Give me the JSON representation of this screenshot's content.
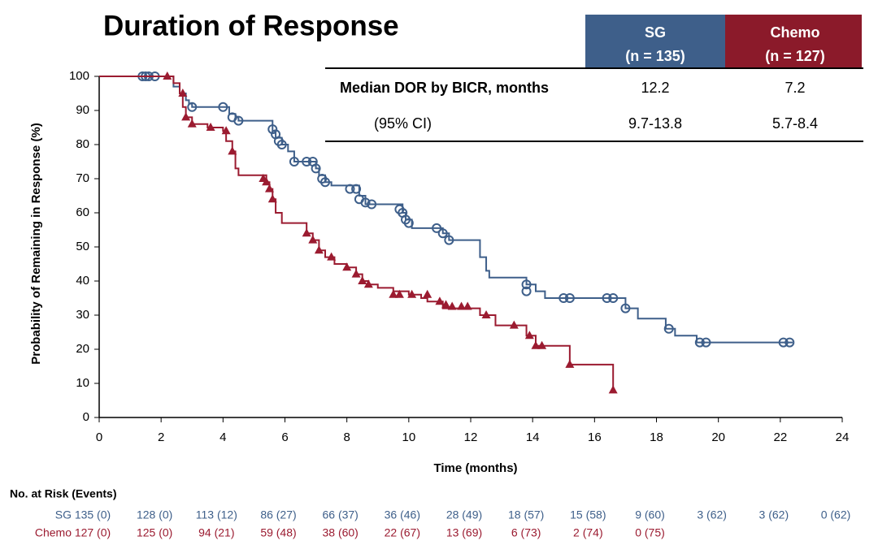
{
  "chart_data": {
    "type": "step",
    "title": "Duration of Response",
    "x_label": "Time (months)",
    "y_label": "Probability of Remaining in Response (%)",
    "xlim": [
      0,
      24
    ],
    "xticks": [
      0,
      2,
      4,
      6,
      8,
      10,
      12,
      14,
      16,
      18,
      20,
      22,
      24
    ],
    "ylim": [
      0,
      100
    ],
    "yticks": [
      0,
      10,
      20,
      30,
      40,
      50,
      60,
      70,
      80,
      90,
      100
    ],
    "series": [
      {
        "name": "SG",
        "color": "#3e5f8a",
        "x": [
          0,
          2.4,
          2.6,
          2.8,
          2.9,
          3.0,
          4.2,
          4.4,
          4.5,
          5.6,
          5.7,
          5.9,
          6.1,
          6.3,
          7.0,
          7.1,
          7.3,
          7.5,
          8.4,
          8.6,
          9.8,
          9.9,
          10.1,
          11.1,
          11.3,
          12.3,
          12.5,
          12.6,
          13.8,
          14.1,
          14.4,
          17.0,
          17.4,
          18.3,
          18.6,
          19.3,
          22.4
        ],
        "values": [
          100,
          97,
          95,
          93,
          92,
          91,
          89,
          88,
          87,
          84,
          82,
          80,
          78,
          75,
          73,
          71,
          69,
          68,
          65,
          62.5,
          60,
          58,
          55.5,
          54,
          52,
          47,
          43,
          41,
          39,
          37,
          35,
          32,
          29,
          26,
          24,
          22,
          22
        ],
        "censor_x": [
          1.4,
          1.5,
          1.6,
          1.8,
          3.0,
          4.0,
          4.3,
          4.5,
          5.6,
          5.7,
          5.8,
          5.9,
          6.3,
          6.7,
          6.9,
          7.0,
          7.2,
          7.3,
          8.1,
          8.3,
          8.4,
          8.6,
          8.8,
          9.7,
          9.8,
          9.9,
          10.0,
          10.9,
          11.1,
          11.3,
          13.8,
          13.8,
          15.0,
          15.2,
          16.4,
          16.6,
          17.0,
          18.4,
          19.4,
          19.6,
          22.1,
          22.3
        ],
        "censor_values": [
          100,
          100,
          100,
          100,
          91,
          91,
          88,
          87,
          84.5,
          83,
          81,
          80,
          75,
          75,
          75,
          73,
          70,
          69,
          67,
          67,
          64,
          63,
          62.5,
          61,
          60,
          58,
          57,
          55.5,
          54,
          52,
          39,
          37,
          35,
          35,
          35,
          35,
          32,
          26,
          22,
          22,
          22,
          22
        ]
      },
      {
        "name": "Chemo",
        "color": "#9b1b30",
        "x": [
          0,
          2.4,
          2.6,
          2.7,
          2.8,
          3.0,
          3.5,
          4.0,
          4.1,
          4.3,
          4.4,
          4.5,
          5.4,
          5.5,
          5.6,
          5.7,
          5.9,
          6.7,
          6.9,
          7.1,
          7.3,
          7.6,
          8.0,
          8.3,
          8.5,
          8.7,
          9.0,
          9.5,
          10.0,
          10.4,
          10.6,
          11.1,
          12.3,
          12.8,
          13.8,
          14.1,
          15.2,
          16.6
        ],
        "values": [
          100,
          98,
          95,
          91,
          88,
          86,
          85,
          84,
          81,
          78,
          73,
          71,
          69,
          67,
          64,
          60,
          57,
          54,
          52,
          49,
          47,
          45,
          44,
          42,
          40,
          39,
          38,
          37,
          36,
          35,
          34,
          32,
          30,
          27,
          24,
          21,
          15.5,
          8
        ],
        "censor_x": [
          2.2,
          2.7,
          2.8,
          3.0,
          3.6,
          4.1,
          4.3,
          5.3,
          5.4,
          5.5,
          5.6,
          6.7,
          6.9,
          7.1,
          7.5,
          8.0,
          8.3,
          8.5,
          8.7,
          9.5,
          9.7,
          10.1,
          10.6,
          11.0,
          11.2,
          11.4,
          11.7,
          11.9,
          12.5,
          13.4,
          13.9,
          14.1,
          14.3,
          15.2,
          16.6
        ],
        "censor_values": [
          100,
          95,
          88,
          86,
          85,
          84,
          78,
          70,
          69,
          67,
          64,
          54,
          52,
          49,
          47,
          44,
          42,
          40,
          39,
          36,
          36,
          36,
          36,
          34,
          33,
          32.5,
          32.5,
          32.5,
          30,
          27,
          24,
          21,
          21,
          15.5,
          8
        ]
      }
    ]
  },
  "summary_table": {
    "headers": [
      [
        "SG",
        "(n = 135)"
      ],
      [
        "Chemo",
        "(n = 127)"
      ]
    ],
    "rows": [
      [
        "Median DOR by BICR, months",
        "12.2",
        "7.2"
      ],
      [
        "(95% CI)",
        "9.7-13.8",
        "5.7-8.4"
      ]
    ]
  },
  "risk_table": {
    "title": "No. at Risk (Events)",
    "rows": [
      {
        "name": "SG",
        "cells": [
          "135 (0)",
          "128 (0)",
          "113 (12)",
          "86 (27)",
          "66 (37)",
          "36 (46)",
          "28 (49)",
          "18 (57)",
          "15 (58)",
          "9 (60)",
          "3 (62)",
          "3 (62)",
          "0 (62)"
        ]
      },
      {
        "name": "Chemo",
        "cells": [
          "127 (0)",
          "125 (0)",
          "94 (21)",
          "59 (48)",
          "38 (60)",
          "22 (67)",
          "13 (69)",
          "6 (73)",
          "2 (74)",
          "0 (75)"
        ]
      }
    ]
  }
}
